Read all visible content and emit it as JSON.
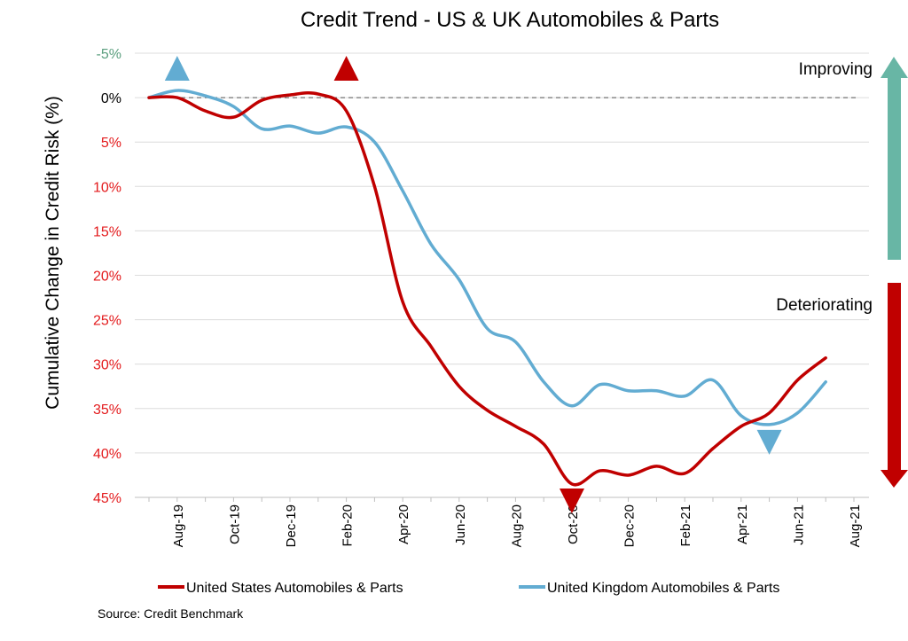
{
  "chart_data": {
    "type": "line",
    "title": "Credit Trend - US & UK Automobiles & Parts",
    "ylabel": "Cumulative Change in Credit Risk (%)",
    "xlabel": "",
    "y_axis": {
      "min": -5,
      "max": 45,
      "inverted": true,
      "ticks": [
        {
          "value": -5,
          "label": "-5%"
        },
        {
          "value": 0,
          "label": "0%"
        },
        {
          "value": 5,
          "label": "5%"
        },
        {
          "value": 10,
          "label": "10%"
        },
        {
          "value": 15,
          "label": "15%"
        },
        {
          "value": 20,
          "label": "20%"
        },
        {
          "value": 25,
          "label": "25%"
        },
        {
          "value": 30,
          "label": "30%"
        },
        {
          "value": 35,
          "label": "35%"
        },
        {
          "value": 40,
          "label": "40%"
        },
        {
          "value": 45,
          "label": "45%"
        }
      ],
      "improving_color": "#5a9e7e",
      "deteriorating_color": "#e31a1c"
    },
    "x_axis": {
      "categories": [
        "Jul-19",
        "Aug-19",
        "Sep-19",
        "Oct-19",
        "Nov-19",
        "Dec-19",
        "Jan-20",
        "Feb-20",
        "Mar-20",
        "Apr-20",
        "May-20",
        "Jun-20",
        "Jul-20",
        "Aug-20",
        "Sep-20",
        "Oct-20",
        "Nov-20",
        "Dec-20",
        "Jan-21",
        "Feb-21",
        "Mar-21",
        "Apr-21",
        "May-21",
        "Jun-21",
        "Jul-21",
        "Aug-21"
      ],
      "tick_labels": [
        "Aug-19",
        "Oct-19",
        "Dec-19",
        "Feb-20",
        "Apr-20",
        "Jun-20",
        "Aug-20",
        "Oct-20",
        "Dec-20",
        "Feb-21",
        "Apr-21",
        "Jun-21",
        "Aug-21"
      ]
    },
    "reference_line": {
      "value": 0,
      "style": "dashed"
    },
    "grid": true,
    "legend_position": "bottom",
    "series": [
      {
        "name": "United States Automobiles & Parts",
        "color": "#c00000",
        "points": [
          {
            "x": "Jul-19",
            "y": 0
          },
          {
            "x": "Aug-19",
            "y": 0
          },
          {
            "x": "Sep-19",
            "y": 1.5
          },
          {
            "x": "Oct-19",
            "y": 2.2
          },
          {
            "x": "Nov-19",
            "y": 0.3
          },
          {
            "x": "Dec-19",
            "y": -0.3
          },
          {
            "x": "Jan-20",
            "y": -0.4
          },
          {
            "x": "Feb-20",
            "y": 1.5
          },
          {
            "x": "Mar-20",
            "y": 10
          },
          {
            "x": "Apr-20",
            "y": 23
          },
          {
            "x": "May-20",
            "y": 28
          },
          {
            "x": "Jun-20",
            "y": 32.5
          },
          {
            "x": "Jul-20",
            "y": 35.2
          },
          {
            "x": "Aug-20",
            "y": 37
          },
          {
            "x": "Sep-20",
            "y": 39
          },
          {
            "x": "Oct-20",
            "y": 43.5
          },
          {
            "x": "Nov-20",
            "y": 42
          },
          {
            "x": "Dec-20",
            "y": 42.5
          },
          {
            "x": "Jan-21",
            "y": 41.5
          },
          {
            "x": "Feb-21",
            "y": 42.3
          },
          {
            "x": "Mar-21",
            "y": 39.5
          },
          {
            "x": "Apr-21",
            "y": 37
          },
          {
            "x": "May-21",
            "y": 35.5
          },
          {
            "x": "Jun-21",
            "y": 31.8
          },
          {
            "x": "Jul-21",
            "y": 29.3
          }
        ],
        "markers": [
          {
            "x": "Feb-20",
            "direction": "up",
            "y": -3.2
          },
          {
            "x": "Oct-20",
            "direction": "down",
            "y": 45.3
          }
        ]
      },
      {
        "name": "United Kingdom Automobiles & Parts",
        "color": "#62acd2",
        "points": [
          {
            "x": "Jul-19",
            "y": 0
          },
          {
            "x": "Aug-19",
            "y": -0.8
          },
          {
            "x": "Sep-19",
            "y": -0.2
          },
          {
            "x": "Oct-19",
            "y": 1
          },
          {
            "x": "Nov-19",
            "y": 3.5
          },
          {
            "x": "Dec-19",
            "y": 3.2
          },
          {
            "x": "Jan-20",
            "y": 4
          },
          {
            "x": "Feb-20",
            "y": 3.3
          },
          {
            "x": "Mar-20",
            "y": 5
          },
          {
            "x": "Apr-20",
            "y": 10.5
          },
          {
            "x": "May-20",
            "y": 16.5
          },
          {
            "x": "Jun-20",
            "y": 20.5
          },
          {
            "x": "Jul-20",
            "y": 26
          },
          {
            "x": "Aug-20",
            "y": 27.5
          },
          {
            "x": "Sep-20",
            "y": 32
          },
          {
            "x": "Oct-20",
            "y": 34.7
          },
          {
            "x": "Nov-20",
            "y": 32.3
          },
          {
            "x": "Dec-20",
            "y": 33
          },
          {
            "x": "Jan-21",
            "y": 33
          },
          {
            "x": "Feb-21",
            "y": 33.6
          },
          {
            "x": "Mar-21",
            "y": 31.8
          },
          {
            "x": "Apr-21",
            "y": 35.8
          },
          {
            "x": "May-21",
            "y": 36.8
          },
          {
            "x": "Jun-21",
            "y": 35.5
          },
          {
            "x": "Jul-21",
            "y": 32
          }
        ],
        "markers": [
          {
            "x": "Aug-19",
            "direction": "up",
            "y": -3.2
          },
          {
            "x": "May-21",
            "direction": "down",
            "y": 38.7
          }
        ]
      }
    ],
    "annotations": {
      "improving_label": "Improving",
      "deteriorating_label": "Deteriorating",
      "improving_arrow_color": "#68b6a5",
      "deteriorating_arrow_color": "#c00000"
    },
    "source": "Source: Credit Benchmark"
  }
}
